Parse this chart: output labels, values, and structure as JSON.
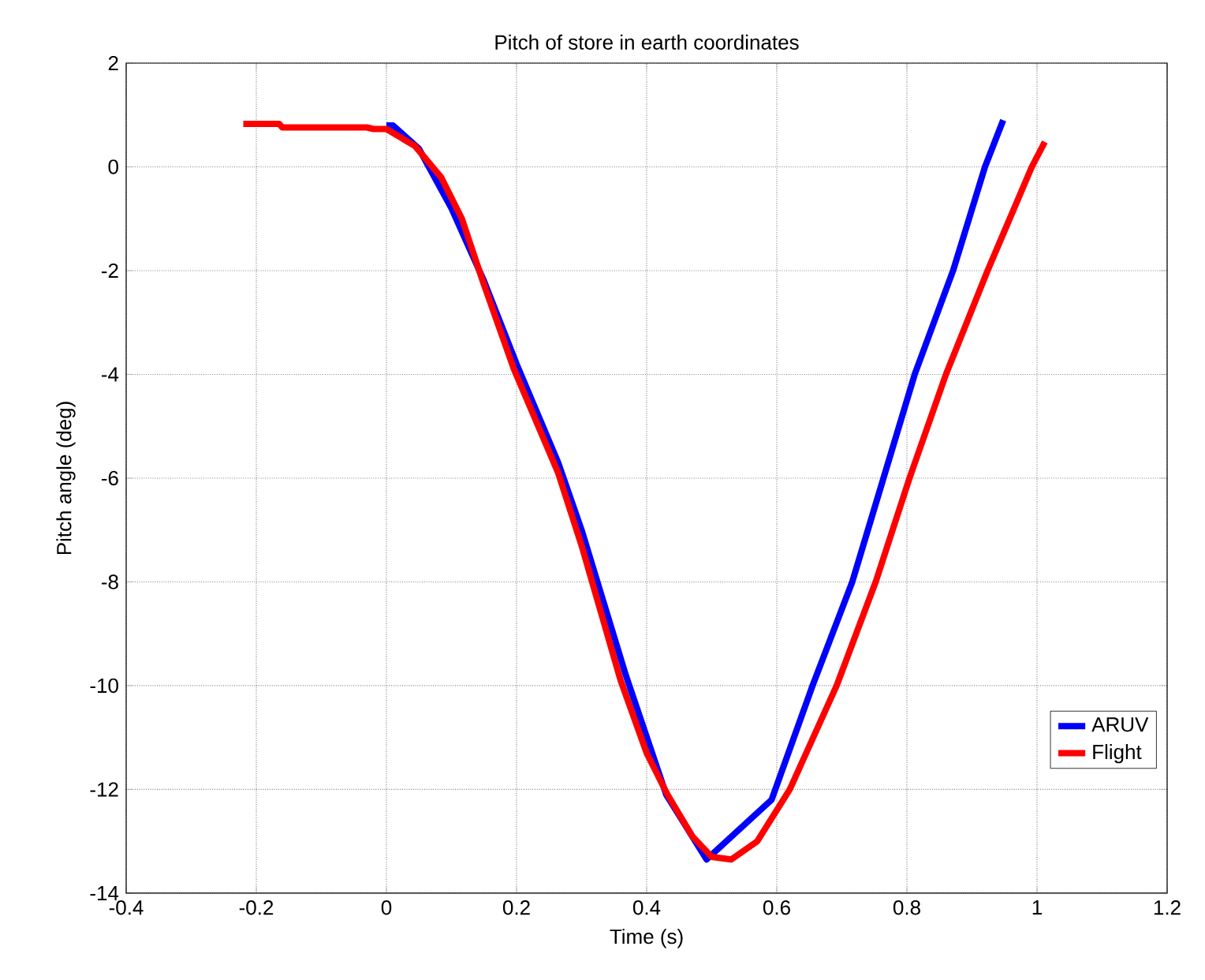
{
  "chart_data": {
    "type": "line",
    "title": "Pitch of store in earth coordinates",
    "xlabel": "Time (s)",
    "ylabel": "Pitch angle (deg)",
    "xlim": [
      -0.4,
      1.2
    ],
    "ylim": [
      -14,
      2
    ],
    "xticks": [
      -0.4,
      -0.2,
      0,
      0.2,
      0.4,
      0.6,
      0.8,
      1,
      1.2
    ],
    "yticks": [
      -14,
      -12,
      -10,
      -8,
      -6,
      -4,
      -2,
      0,
      2
    ],
    "grid": true,
    "legend": "bottom right",
    "line_style": "solid",
    "marker": "none",
    "series": [
      {
        "name": "ARUV",
        "color": "#0000ff",
        "x": [
          0,
          0.01,
          0.05,
          0.1,
          0.15,
          0.2,
          0.264,
          0.3,
          0.368,
          0.43,
          0.492,
          0.592,
          0.655,
          0.716,
          0.764,
          0.812,
          0.871,
          0.92,
          0.948
        ],
        "values": [
          0.8,
          0.8,
          0.35,
          -0.8,
          -2.2,
          -3.8,
          -5.7,
          -7.0,
          -9.8,
          -12.1,
          -13.35,
          -12.2,
          -10,
          -8,
          -6,
          -4,
          -2,
          0,
          0.9
        ]
      },
      {
        "name": "Flight",
        "color": "#ff0000",
        "x": [
          -0.22,
          -0.165,
          -0.16,
          -0.03,
          -0.02,
          0,
          0.044,
          0.084,
          0.116,
          0.148,
          0.196,
          0.264,
          0.3,
          0.36,
          0.4,
          0.432,
          0.47,
          0.5,
          0.53,
          0.57,
          0.62,
          0.692,
          0.752,
          0.804,
          0.86,
          0.924,
          0.992,
          1.012
        ],
        "values": [
          0.83,
          0.83,
          0.76,
          0.76,
          0.73,
          0.73,
          0.4,
          -0.2,
          -1.0,
          -2.2,
          -3.9,
          -5.9,
          -7.3,
          -9.9,
          -11.3,
          -12.1,
          -12.9,
          -13.3,
          -13.35,
          -13.0,
          -12.0,
          -10,
          -8,
          -6,
          -4,
          -2,
          0,
          0.48
        ]
      }
    ]
  }
}
